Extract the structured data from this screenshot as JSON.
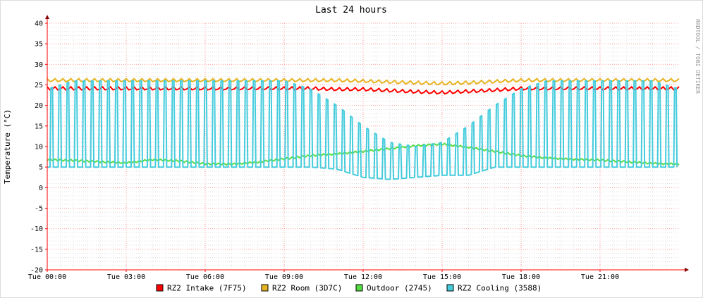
{
  "chart_data": {
    "type": "line",
    "title": "Last 24 hours",
    "ylabel": "Temperature (°C)",
    "xlabel": "",
    "watermark": "RRDTOOL / TOBI OETIKER",
    "ylim": [
      -20,
      40
    ],
    "y_ticks": [
      40,
      35,
      30,
      25,
      20,
      15,
      10,
      5,
      0,
      -5,
      -10,
      -15,
      -20
    ],
    "x_ticks": [
      {
        "label": "Tue 00:00",
        "hour": 0
      },
      {
        "label": "Tue 03:00",
        "hour": 3
      },
      {
        "label": "Tue 06:00",
        "hour": 6
      },
      {
        "label": "Tue 09:00",
        "hour": 9
      },
      {
        "label": "Tue 12:00",
        "hour": 12
      },
      {
        "label": "Tue 15:00",
        "hour": 15
      },
      {
        "label": "Tue 18:00",
        "hour": 18
      },
      {
        "label": "Tue 21:00",
        "hour": 21
      }
    ],
    "xlim_hours": [
      0,
      24
    ],
    "grid": true,
    "legend_position": "bottom",
    "series": [
      {
        "name": "RZ2 Intake (7F75)",
        "color": "#ff0000",
        "x": [
          0,
          1,
          2,
          3,
          4,
          5,
          6,
          7,
          8,
          9,
          10,
          11,
          12,
          13,
          14,
          15,
          16,
          17,
          18,
          19,
          20,
          21,
          22,
          23,
          24
        ],
        "values": [
          24,
          24,
          24,
          24,
          24,
          24,
          24,
          24,
          24,
          24,
          24,
          23.8,
          23.8,
          23.5,
          23.2,
          23.0,
          23.3,
          23.6,
          24,
          24,
          24,
          24,
          24,
          24,
          24
        ]
      },
      {
        "name": "RZ2 Room (3D7C)",
        "color": "#e6b422",
        "x": [
          0,
          1,
          2,
          3,
          4,
          5,
          6,
          7,
          8,
          9,
          10,
          11,
          12,
          13,
          14,
          15,
          16,
          17,
          18,
          19,
          20,
          21,
          22,
          23,
          24
        ],
        "values": [
          26,
          26,
          26,
          26,
          26,
          26,
          26,
          26,
          26,
          26,
          26,
          26,
          25.8,
          25.6,
          25.4,
          25.2,
          25.4,
          25.7,
          26,
          26,
          26,
          26,
          26,
          26,
          26
        ]
      },
      {
        "name": "Outdoor (2745)",
        "color": "#55dd44",
        "x": [
          0,
          1,
          2,
          3,
          4,
          5,
          6,
          7,
          8,
          9,
          10,
          11,
          12,
          13,
          14,
          15,
          16,
          17,
          18,
          19,
          20,
          21,
          22,
          23,
          24
        ],
        "values": [
          6.8,
          6.6,
          6.3,
          6.0,
          6.8,
          6.5,
          5.8,
          5.7,
          6.2,
          7.0,
          7.8,
          8.2,
          8.8,
          9.5,
          10.2,
          10.6,
          9.8,
          8.8,
          7.8,
          7.2,
          6.9,
          6.7,
          6.3,
          5.9,
          5.7
        ]
      },
      {
        "name": "RZ2 Cooling (3588)",
        "color": "#44ccdd",
        "x": [
          0,
          1,
          2,
          3,
          4,
          5,
          6,
          7,
          8,
          9,
          10,
          11,
          12,
          13,
          14,
          15,
          16,
          17,
          18,
          19,
          20,
          21,
          22,
          23,
          24
        ],
        "values_low": [
          5,
          5,
          5,
          5,
          5,
          5,
          5,
          5,
          5,
          5,
          5,
          4.5,
          2.5,
          2,
          2.5,
          3,
          3,
          5,
          5,
          5,
          5,
          5,
          5,
          5,
          5
        ],
        "values_high": [
          24,
          26,
          26,
          26,
          26,
          26,
          26,
          26,
          26,
          26,
          24,
          20,
          15,
          11,
          10,
          11,
          15,
          20,
          24,
          26,
          26,
          26,
          26,
          26,
          24
        ]
      }
    ]
  }
}
